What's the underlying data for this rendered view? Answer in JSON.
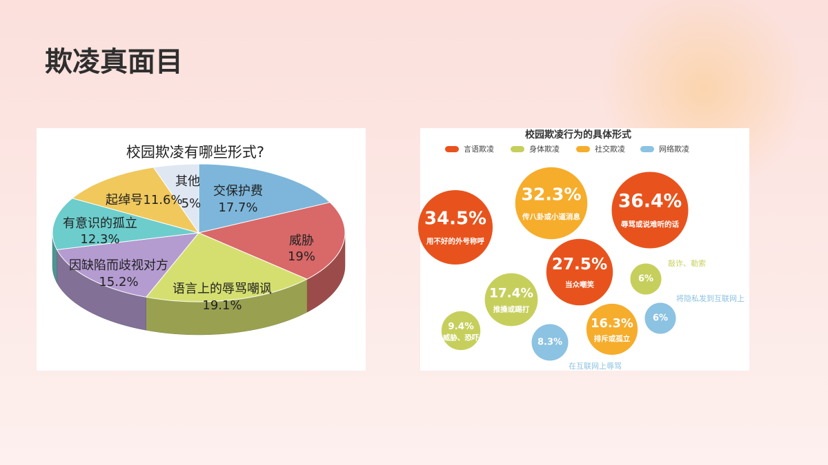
{
  "title": "欺凌真面目",
  "chart_data": [
    {
      "type": "pie",
      "title": "校园欺凌有哪些形式?",
      "categories": [
        "交保护费",
        "威胁",
        "语言上的辱骂嘲讽",
        "因缺陷而歧视对方",
        "有意识的孤立",
        "起绰号",
        "其他"
      ],
      "values": [
        17.7,
        19,
        19.1,
        15.2,
        12.3,
        11.6,
        5
      ],
      "value_labels": [
        "17.7%",
        "19%",
        "19.1%",
        "15.2%",
        "12.3%",
        "11.6%",
        "5%"
      ],
      "colors": [
        "#7db6da",
        "#d96868",
        "#d5df70",
        "#b49bd0",
        "#6ccdcc",
        "#f0c85c",
        "#dfe7f3"
      ]
    },
    {
      "type": "bubble",
      "title": "校园欺凌行为的具体形式",
      "series": [
        {
          "name": "言语欺凌",
          "color": "#e8531d",
          "values": [
            34.5,
            36.4,
            27.5
          ],
          "value_labels": [
            "34.5%",
            "36.4%",
            "27.5%"
          ],
          "labels": [
            "用不好的外号称呼",
            "辱骂或说难听的话",
            "当众嘲笑"
          ]
        },
        {
          "name": "身体欺凌",
          "color": "#c6cf5c",
          "values": [
            17.4,
            9.4,
            6
          ],
          "value_labels": [
            "17.4%",
            "9.4%",
            "6%"
          ],
          "labels": [
            "推搡或踢打",
            "威胁、恐吓",
            "敲诈、勒索"
          ]
        },
        {
          "name": "社交欺凌",
          "color": "#f6ad2c",
          "values": [
            32.3,
            16.3
          ],
          "value_labels": [
            "32.3%",
            "16.3%"
          ],
          "labels": [
            "传八卦或小道消息",
            "排斥或孤立"
          ]
        },
        {
          "name": "网络欺凌",
          "color": "#8cc2e2",
          "values": [
            6,
            8.3
          ],
          "value_labels": [
            "6%",
            "8.3%"
          ],
          "labels": [
            "将隐私发到互联网上",
            "在互联网上辱骂"
          ]
        }
      ]
    }
  ]
}
